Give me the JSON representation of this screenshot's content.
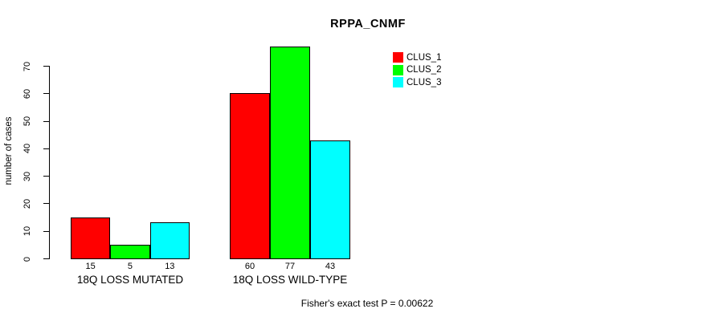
{
  "title": "RPPA_CNMF",
  "footer": "Fisher's exact test P = 0.00622",
  "chart_data": {
    "type": "bar",
    "title": "RPPA_CNMF",
    "categories": [
      "18Q LOSS MUTATED",
      "18Q LOSS WILD-TYPE"
    ],
    "series": [
      {
        "name": "CLUS_1",
        "color": "#FF0000",
        "values": [
          15,
          60
        ]
      },
      {
        "name": "CLUS_2",
        "color": "#00FF00",
        "values": [
          5,
          77
        ]
      },
      {
        "name": "CLUS_3",
        "color": "#00FFFF",
        "values": [
          13,
          43
        ]
      }
    ],
    "xlabel": "",
    "ylabel": "number of cases",
    "ylim": [
      0,
      70
    ],
    "yticks": [
      0,
      10,
      20,
      30,
      40,
      50,
      60,
      70
    ],
    "bar_value_labels": [
      [
        "15",
        "5",
        "13"
      ],
      [
        "60",
        "77",
        "43"
      ]
    ],
    "grid": false,
    "legend_position": "top-right",
    "annotation": "Fisher's exact test P = 0.00622"
  }
}
